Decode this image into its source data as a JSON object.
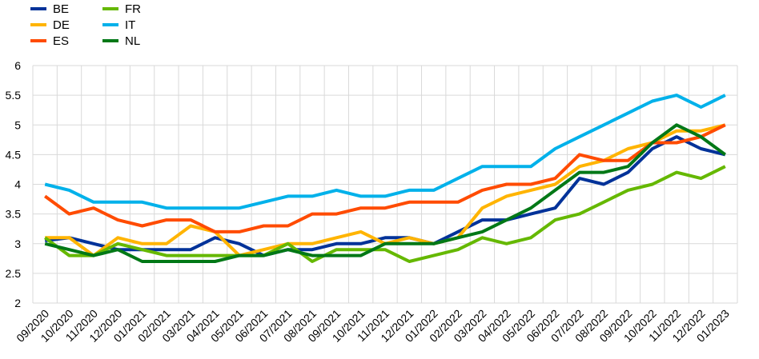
{
  "chart_data": {
    "type": "line",
    "x": [
      "09/2020",
      "10/2020",
      "11/2020",
      "12/2020",
      "01/2021",
      "02/2021",
      "03/2021",
      "04/2021",
      "05/2021",
      "06/2021",
      "07/2021",
      "08/2021",
      "09/2021",
      "10/2021",
      "11/2021",
      "12/2021",
      "01/2022",
      "02/2022",
      "03/2022",
      "04/2022",
      "05/2022",
      "06/2022",
      "07/2022",
      "08/2022",
      "09/2022",
      "10/2022",
      "11/2022",
      "12/2022",
      "01/2023"
    ],
    "yticks": [
      "2",
      "2.5",
      "3",
      "3.5",
      "4",
      "4.5",
      "5",
      "5.5",
      "6"
    ],
    "ylim": [
      2,
      6
    ],
    "grid": true,
    "legend_position": "top-left",
    "series": [
      {
        "name": "BE",
        "color": "#003299",
        "values": [
          3.05,
          3.1,
          3.0,
          2.9,
          2.9,
          2.9,
          2.9,
          3.1,
          3.0,
          2.8,
          2.9,
          2.9,
          3.0,
          3.0,
          3.1,
          3.1,
          3.0,
          3.2,
          3.4,
          3.4,
          3.5,
          3.6,
          4.1,
          4.0,
          4.2,
          4.6,
          4.8,
          4.6,
          4.5
        ]
      },
      {
        "name": "DE",
        "color": "#FFB400",
        "values": [
          3.1,
          3.1,
          2.8,
          3.1,
          3.0,
          3.0,
          3.3,
          3.2,
          2.8,
          2.9,
          3.0,
          3.0,
          3.1,
          3.2,
          3.0,
          3.1,
          3.0,
          3.1,
          3.6,
          3.8,
          3.9,
          4.0,
          4.3,
          4.4,
          4.6,
          4.7,
          4.9,
          4.9,
          5.0
        ]
      },
      {
        "name": "ES",
        "color": "#FF4B00",
        "values": [
          3.8,
          3.5,
          3.6,
          3.4,
          3.3,
          3.4,
          3.4,
          3.2,
          3.2,
          3.3,
          3.3,
          3.5,
          3.5,
          3.6,
          3.6,
          3.7,
          3.7,
          3.7,
          3.9,
          4.0,
          4.0,
          4.1,
          4.5,
          4.4,
          4.4,
          4.7,
          4.7,
          4.8,
          5.0
        ]
      },
      {
        "name": "FR",
        "color": "#65B800",
        "values": [
          3.1,
          2.8,
          2.8,
          3.0,
          2.9,
          2.8,
          2.8,
          2.8,
          2.8,
          2.8,
          3.0,
          2.7,
          2.9,
          2.9,
          2.9,
          2.7,
          2.8,
          2.9,
          3.1,
          3.0,
          3.1,
          3.4,
          3.5,
          3.7,
          3.9,
          4.0,
          4.2,
          4.1,
          4.3
        ]
      },
      {
        "name": "IT",
        "color": "#00B1EA",
        "values": [
          4.0,
          3.9,
          3.7,
          3.7,
          3.7,
          3.6,
          3.6,
          3.6,
          3.6,
          3.7,
          3.8,
          3.8,
          3.9,
          3.8,
          3.8,
          3.9,
          3.9,
          4.1,
          4.3,
          4.3,
          4.3,
          4.6,
          4.8,
          5.0,
          5.2,
          5.4,
          5.5,
          5.3,
          5.5
        ]
      },
      {
        "name": "NL",
        "color": "#007816",
        "values": [
          3.0,
          2.9,
          2.8,
          2.9,
          2.7,
          2.7,
          2.7,
          2.7,
          2.8,
          2.8,
          2.9,
          2.8,
          2.8,
          2.8,
          3.0,
          3.0,
          3.0,
          3.1,
          3.2,
          3.4,
          3.6,
          3.9,
          4.2,
          4.2,
          4.3,
          4.7,
          5.0,
          4.8,
          4.5
        ]
      }
    ]
  }
}
